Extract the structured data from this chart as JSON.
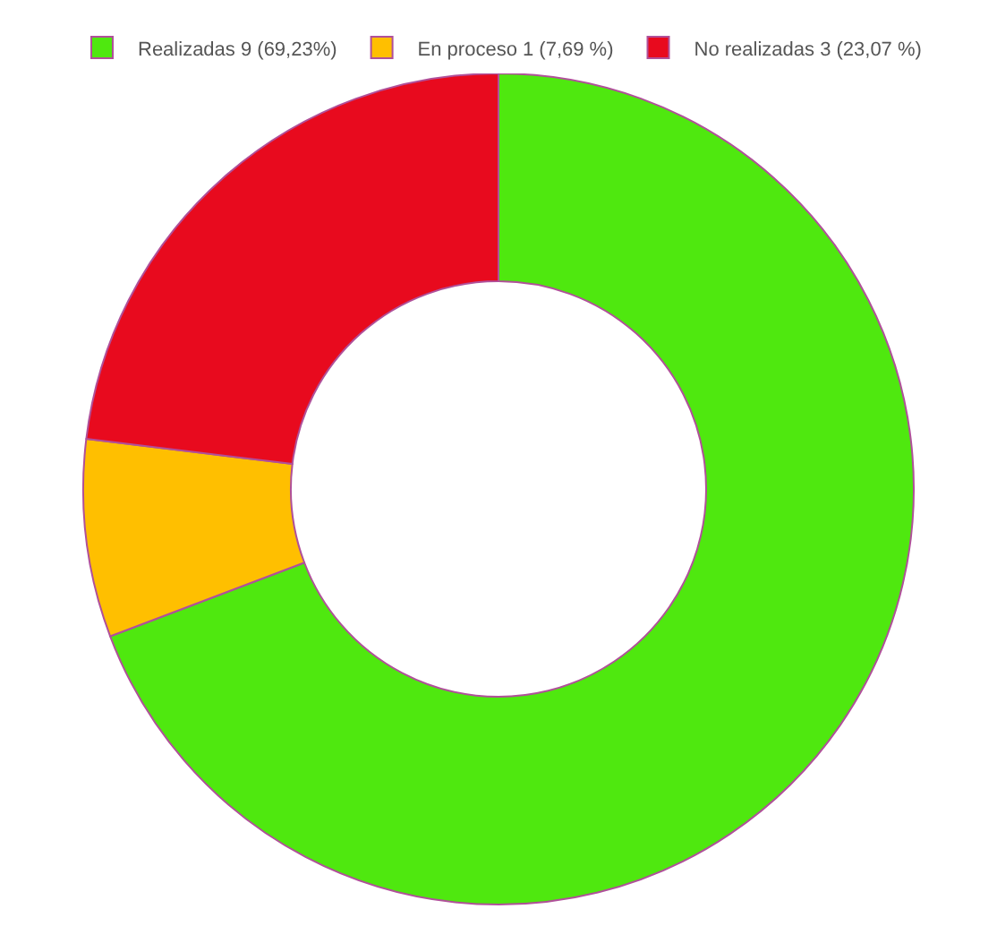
{
  "chart_data": {
    "type": "donut",
    "categories": [
      "Realizadas 9 (69,23%)",
      "En proceso 1 (7,69 %)",
      "No realizadas 3 (23,07 %)"
    ],
    "values": [
      9,
      1,
      3
    ],
    "colors": [
      "#4fe80f",
      "#ffbf00",
      "#e80a1e"
    ],
    "legend": "top"
  }
}
